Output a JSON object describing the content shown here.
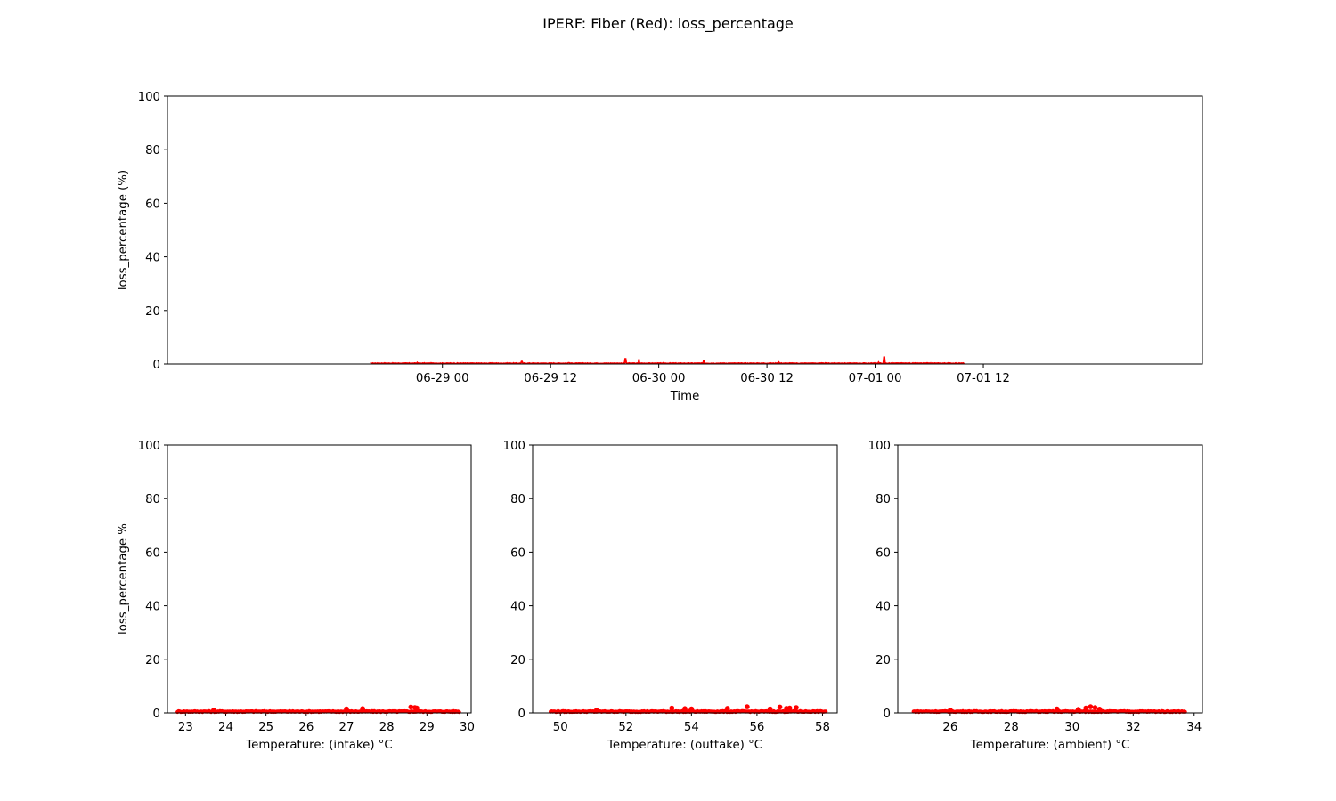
{
  "title": "IPERF: Fiber (Red): loss_percentage",
  "series_color": "#ff0000",
  "chart_data": [
    {
      "id": "time",
      "type": "line",
      "title": "",
      "xlabel": "Time",
      "ylabel": "loss_percentage (%)",
      "ylim": [
        0,
        100
      ],
      "yticks": [
        0,
        20,
        40,
        60,
        80,
        100
      ],
      "xlim_hours": [
        -30.5,
        84.3
      ],
      "xticks": [
        {
          "h": 0,
          "label": "06-29 00"
        },
        {
          "h": 12,
          "label": "06-29 12"
        },
        {
          "h": 24,
          "label": "06-30 00"
        },
        {
          "h": 36,
          "label": "06-30 12"
        },
        {
          "h": 48,
          "label": "07-01 00"
        },
        {
          "h": 60,
          "label": "07-01 12"
        }
      ],
      "x_range_hours": [
        -8,
        57.9
      ],
      "baseline": 0.3,
      "points": [
        {
          "x": -8,
          "y": 0.3
        },
        {
          "x": -2.8,
          "y": 0.6
        },
        {
          "x": 8.8,
          "y": 1.0
        },
        {
          "x": 14.0,
          "y": 0.5
        },
        {
          "x": 20.3,
          "y": 2.0
        },
        {
          "x": 21.8,
          "y": 1.8
        },
        {
          "x": 24.5,
          "y": 0.5
        },
        {
          "x": 29.0,
          "y": 1.4
        },
        {
          "x": 37.3,
          "y": 0.7
        },
        {
          "x": 44.0,
          "y": 0.4
        },
        {
          "x": 48.4,
          "y": 0.7
        },
        {
          "x": 49.0,
          "y": 2.6
        },
        {
          "x": 57.9,
          "y": 0.3
        }
      ]
    },
    {
      "id": "intake",
      "type": "scatter",
      "title": "",
      "xlabel": "Temperature: (intake) °C",
      "ylabel": "loss_percentage %",
      "xlim": [
        22.55,
        30.1
      ],
      "ylim": [
        0,
        100
      ],
      "xticks": [
        23,
        24,
        25,
        26,
        27,
        28,
        29,
        30
      ],
      "yticks": [
        0,
        20,
        40,
        60,
        80,
        100
      ],
      "x_range": [
        22.8,
        29.8
      ],
      "baseline": 0.5,
      "points": [
        {
          "x": 23.7,
          "y": 1.0
        },
        {
          "x": 27.0,
          "y": 1.5
        },
        {
          "x": 27.4,
          "y": 1.6
        },
        {
          "x": 28.6,
          "y": 2.2
        },
        {
          "x": 28.7,
          "y": 2.0
        },
        {
          "x": 28.75,
          "y": 1.8
        }
      ]
    },
    {
      "id": "outtake",
      "type": "scatter",
      "title": "",
      "xlabel": "Temperature: (outtake) °C",
      "ylabel": "",
      "xlim": [
        49.15,
        58.45
      ],
      "ylim": [
        0,
        100
      ],
      "xticks": [
        50,
        52,
        54,
        56,
        58
      ],
      "yticks": [
        0,
        20,
        40,
        60,
        80,
        100
      ],
      "x_range": [
        49.7,
        58.1
      ],
      "baseline": 0.5,
      "points": [
        {
          "x": 51.1,
          "y": 1.0
        },
        {
          "x": 53.4,
          "y": 1.8
        },
        {
          "x": 53.8,
          "y": 1.6
        },
        {
          "x": 54.0,
          "y": 1.5
        },
        {
          "x": 55.1,
          "y": 1.7
        },
        {
          "x": 55.7,
          "y": 2.3
        },
        {
          "x": 56.4,
          "y": 1.5
        },
        {
          "x": 56.7,
          "y": 2.2
        },
        {
          "x": 56.9,
          "y": 1.7
        },
        {
          "x": 57.0,
          "y": 1.8
        },
        {
          "x": 57.2,
          "y": 2.0
        }
      ]
    },
    {
      "id": "ambient",
      "type": "scatter",
      "title": "",
      "xlabel": "Temperature: (ambient) °C",
      "ylabel": "",
      "xlim": [
        24.28,
        34.27
      ],
      "ylim": [
        0,
        100
      ],
      "xticks": [
        26,
        28,
        30,
        32,
        34
      ],
      "yticks": [
        0,
        20,
        40,
        60,
        80,
        100
      ],
      "x_range": [
        24.8,
        33.7
      ],
      "baseline": 0.5,
      "points": [
        {
          "x": 26.0,
          "y": 1.0
        },
        {
          "x": 29.5,
          "y": 1.5
        },
        {
          "x": 30.2,
          "y": 1.3
        },
        {
          "x": 30.45,
          "y": 1.8
        },
        {
          "x": 30.6,
          "y": 2.3
        },
        {
          "x": 30.75,
          "y": 2.0
        },
        {
          "x": 30.9,
          "y": 1.4
        }
      ]
    }
  ]
}
